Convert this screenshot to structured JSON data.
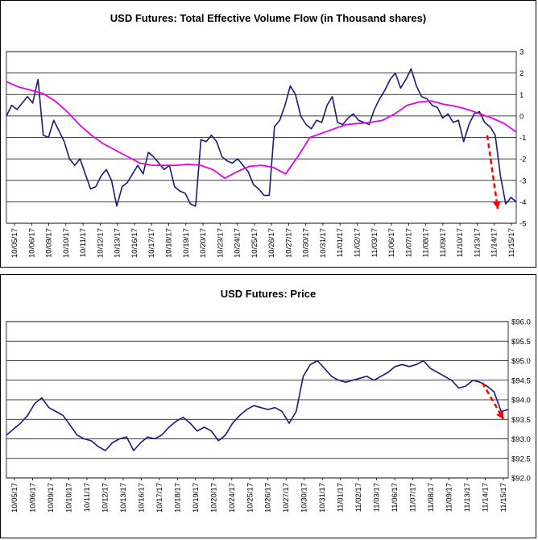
{
  "chart_data": [
    {
      "type": "line",
      "title": "USD Futures: Total Effective Volume Flow (in Thousand shares)",
      "ylim": [
        -5,
        3
      ],
      "yticks": [
        "3",
        "2",
        "1",
        "0",
        "-1",
        "-2",
        "-3",
        "-4",
        "-5"
      ],
      "grid": true,
      "xticks": [
        "10/05/17",
        "10/06/17",
        "10/09/17",
        "10/10/17",
        "10/11/17",
        "10/12/17",
        "10/13/17",
        "10/16/17",
        "10/17/17",
        "10/18/17",
        "10/19/17",
        "10/20/17",
        "10/23/17",
        "10/24/17",
        "10/25/17",
        "10/26/17",
        "10/27/17",
        "10/30/17",
        "10/31/17",
        "11/01/17",
        "11/02/17",
        "11/03/17",
        "11/06/17",
        "11/07/17",
        "11/08/17",
        "11/09/17",
        "11/10/17",
        "11/13/17",
        "11/14/17",
        "11/15/17"
      ],
      "series": [
        {
          "color": "#1a1a7a",
          "values": [
            0.0,
            0.5,
            0.3,
            0.6,
            0.9,
            0.6,
            1.7,
            -0.9,
            -1.0,
            -0.2,
            -0.7,
            -1.2,
            -2.0,
            -2.3,
            -2.0,
            -2.7,
            -3.4,
            -3.3,
            -2.8,
            -2.5,
            -3.0,
            -4.2,
            -3.3,
            -3.1,
            -2.7,
            -2.3,
            -2.7,
            -1.7,
            -1.9,
            -2.2,
            -2.5,
            -2.3,
            -3.3,
            -3.5,
            -3.6,
            -4.1,
            -4.2,
            -1.1,
            -1.2,
            -0.9,
            -1.2,
            -1.9,
            -2.1,
            -2.2,
            -2.0,
            -2.3,
            -2.6,
            -3.2,
            -3.4,
            -3.7,
            -3.7,
            -0.5,
            -0.2,
            0.5,
            1.4,
            1.0,
            0.0,
            -0.4,
            -0.6,
            -0.2,
            -0.3,
            0.5,
            0.9,
            -0.3,
            -0.4,
            -0.1,
            0.1,
            -0.2,
            -0.3,
            -0.4,
            0.3,
            0.8,
            1.2,
            1.7,
            2.0,
            1.3,
            1.7,
            2.2,
            1.4,
            0.9,
            0.8,
            0.5,
            0.4,
            -0.1,
            0.1,
            -0.3,
            -0.2,
            -1.2,
            -0.4,
            0.1,
            0.2,
            -0.3,
            -0.5,
            -0.9,
            -2.8,
            -4.1,
            -3.8,
            -4.0
          ]
        },
        {
          "color": "#e800e8",
          "values": [
            1.6,
            1.35,
            1.2,
            1.05,
            0.7,
            0.2,
            -0.4,
            -0.9,
            -1.3,
            -1.6,
            -1.9,
            -2.2,
            -2.3,
            -2.3,
            -2.3,
            -2.25,
            -2.3,
            -2.5,
            -2.9,
            -2.6,
            -2.35,
            -2.3,
            -2.4,
            -2.7,
            -1.9,
            -1.0,
            -0.8,
            -0.6,
            -0.4,
            -0.35,
            -0.3,
            -0.2,
            0.1,
            0.5,
            0.65,
            0.7,
            0.55,
            0.45,
            0.3,
            0.1,
            -0.1,
            -0.35,
            -0.75
          ]
        }
      ],
      "annotation": {
        "type": "dashed-arrow",
        "color": "#ff0000"
      }
    },
    {
      "type": "line",
      "title": "USD Futures: Price",
      "ylim": [
        92.0,
        96.0
      ],
      "yticks": [
        "$96.0",
        "$95.5",
        "$95.0",
        "$94.5",
        "$94.0",
        "$93.5",
        "$93.0",
        "$92.5",
        "$92.0"
      ],
      "grid": true,
      "xticks": [
        "10/05/17",
        "10/06/17",
        "10/09/17",
        "10/10/17",
        "10/11/17",
        "10/12/17",
        "10/13/17",
        "10/16/17",
        "10/17/17",
        "10/18/17",
        "10/19/17",
        "10/20/17",
        "10/24/17",
        "10/25/17",
        "10/26/17",
        "10/27/17",
        "10/30/17",
        "10/31/17",
        "11/01/17",
        "11/02/17",
        "11/03/17",
        "11/06/17",
        "11/07/17",
        "11/08/17",
        "11/09/17",
        "11/13/17",
        "11/14/17",
        "11/15/17"
      ],
      "series": [
        {
          "color": "#1a1a7a",
          "values": [
            93.1,
            93.25,
            93.4,
            93.6,
            93.9,
            94.05,
            93.8,
            93.7,
            93.6,
            93.35,
            93.1,
            93.0,
            92.95,
            92.8,
            92.7,
            92.9,
            93.0,
            93.05,
            92.7,
            92.9,
            93.05,
            93.0,
            93.1,
            93.3,
            93.45,
            93.55,
            93.4,
            93.2,
            93.3,
            93.2,
            92.95,
            93.1,
            93.4,
            93.6,
            93.75,
            93.85,
            93.8,
            93.75,
            93.8,
            93.7,
            93.4,
            93.7,
            94.6,
            94.9,
            95.0,
            94.8,
            94.6,
            94.5,
            94.45,
            94.5,
            94.55,
            94.6,
            94.5,
            94.6,
            94.7,
            94.85,
            94.9,
            94.85,
            94.9,
            95.0,
            94.8,
            94.7,
            94.6,
            94.5,
            94.3,
            94.35,
            94.5,
            94.45,
            94.35,
            94.2,
            93.7,
            93.75
          ]
        }
      ],
      "annotation": {
        "type": "dashed-arrow",
        "color": "#ff0000"
      }
    }
  ]
}
